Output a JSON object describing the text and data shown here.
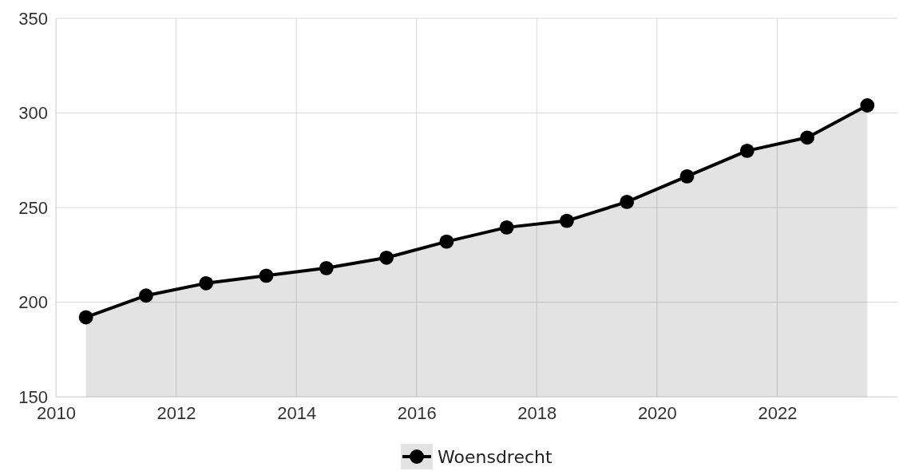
{
  "chart_data": {
    "type": "area",
    "x": [
      2010.5,
      2011.5,
      2012.5,
      2013.5,
      2014.5,
      2015.5,
      2016.5,
      2017.5,
      2018.5,
      2019.5,
      2020.5,
      2021.5,
      2022.5,
      2023.5
    ],
    "series": [
      {
        "name": "Woensdrecht",
        "color": "#000000",
        "values": [
          192,
          203.5,
          210,
          214,
          218,
          223.5,
          232,
          239.5,
          243,
          253,
          266.5,
          280,
          287,
          304
        ]
      }
    ],
    "xlim": [
      2010,
      2024
    ],
    "xticks": [
      2010,
      2012,
      2014,
      2016,
      2018,
      2020,
      2022
    ],
    "ylim": [
      150,
      350
    ],
    "yticks": [
      150,
      200,
      250,
      300,
      350
    ],
    "grid": true,
    "legend": "bottom",
    "marker": "circle",
    "line_style": "solid"
  }
}
